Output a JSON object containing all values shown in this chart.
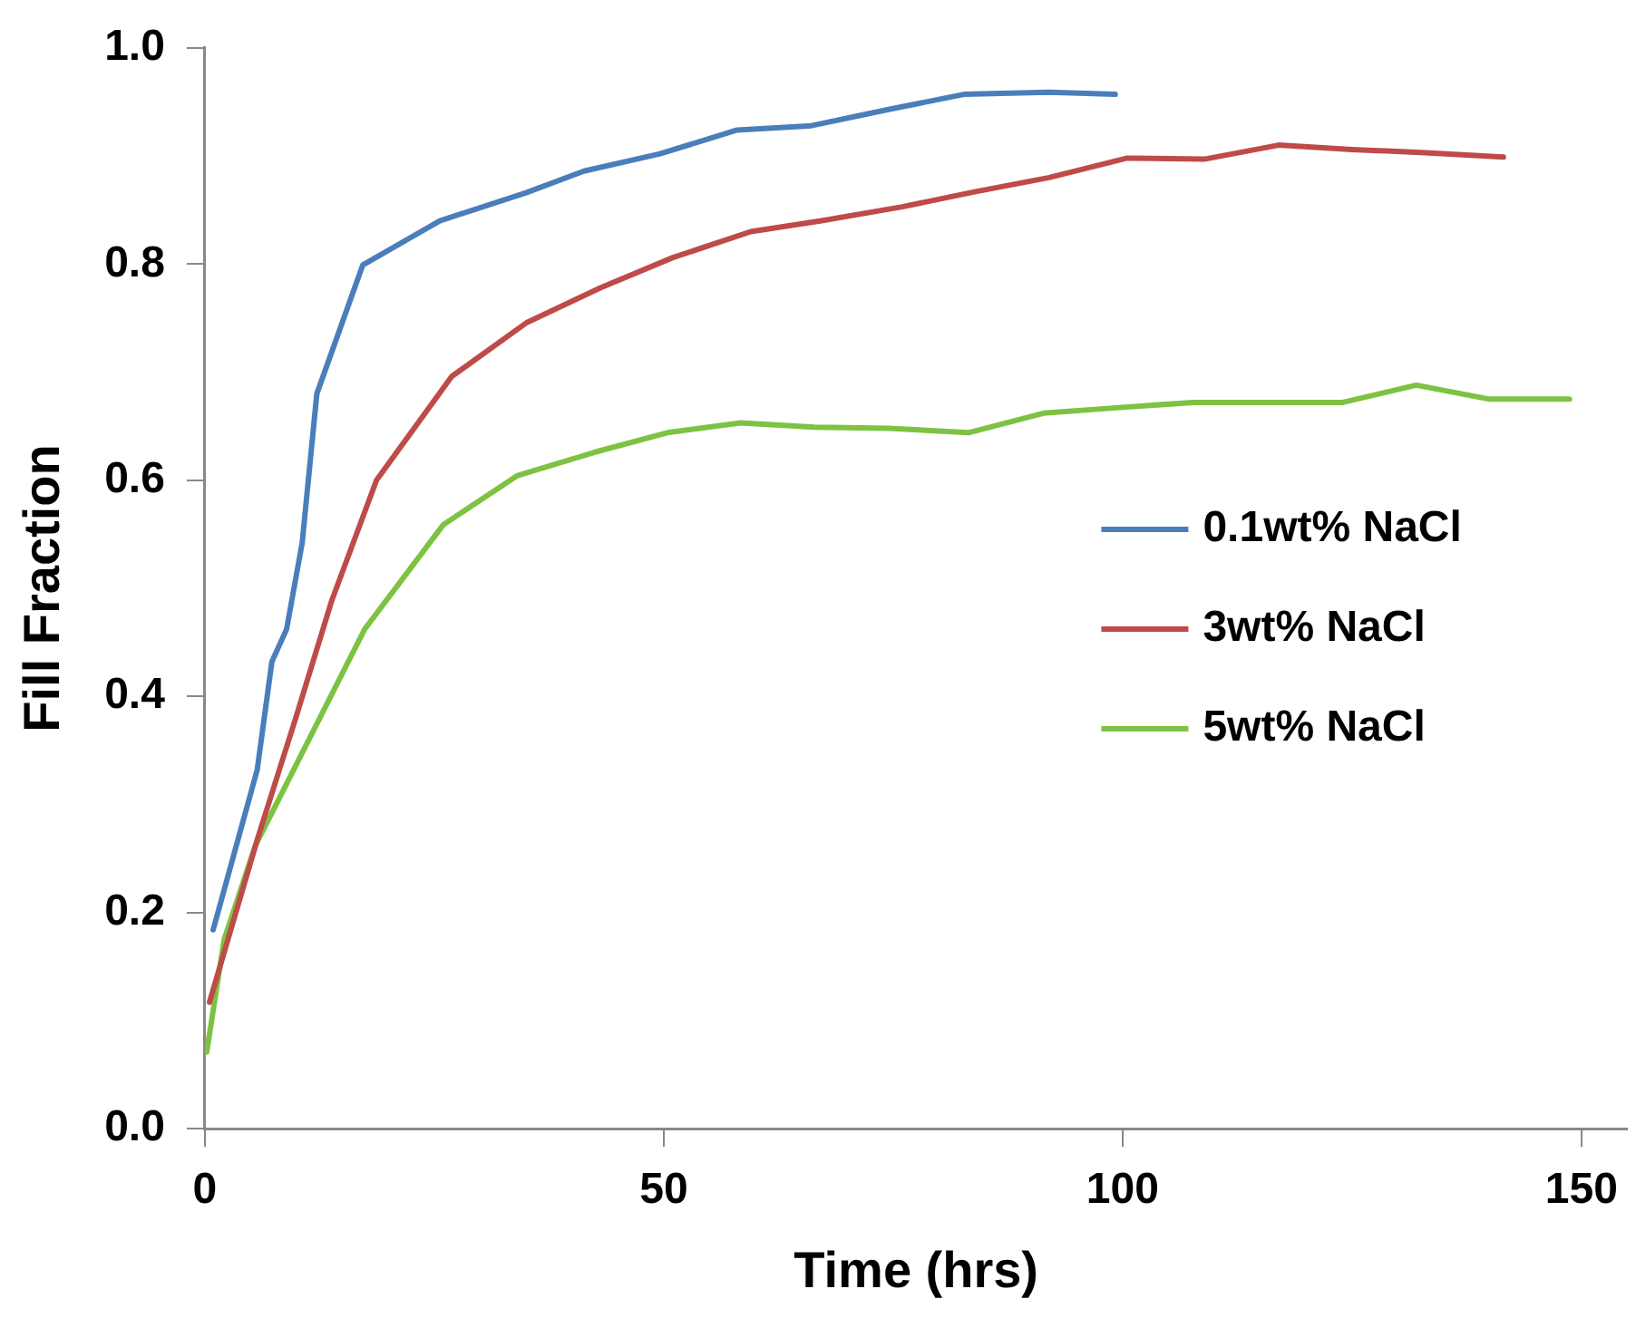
{
  "chart_data": {
    "type": "line",
    "xlabel": "Time (hrs)",
    "ylabel": "Fill Fraction",
    "xlim": [
      0,
      155
    ],
    "xticks": [
      0,
      50,
      100,
      150
    ],
    "ylim": [
      0,
      1
    ],
    "yticks": [
      {
        "value": 0,
        "label": "0.0"
      },
      {
        "value": 0.2,
        "label": "0.2"
      },
      {
        "value": 0.4,
        "label": "0.4"
      },
      {
        "value": 0.6,
        "label": "0.6"
      },
      {
        "value": 0.8,
        "label": "0.8"
      },
      {
        "value": 1,
        "label": "1.0"
      }
    ],
    "grid": false,
    "legend": "right",
    "marker": "none",
    "line_style": "solid",
    "series": [
      {
        "name": "0.1wt% NaCl",
        "color": "#4a7ebb",
        "x": [
          0.9,
          5.7,
          7.3,
          8.9,
          10.6,
          12.2,
          17.2,
          25.6,
          35,
          41.3,
          49.6,
          58,
          66.1,
          74.5,
          82.7,
          92,
          99.2
        ],
        "values": [
          0.184,
          0.332,
          0.432,
          0.462,
          0.542,
          0.68,
          0.799,
          0.84,
          0.866,
          0.886,
          0.902,
          0.924,
          0.928,
          0.943,
          0.957,
          0.959,
          0.957
        ]
      },
      {
        "name": "3wt% NaCl",
        "color": "#be4b48",
        "x": [
          0.5,
          5.8,
          9.9,
          13.8,
          18.7,
          26.9,
          35.1,
          43.1,
          51,
          59.5,
          67.2,
          76,
          84,
          92,
          100.5,
          108.9,
          117,
          125,
          133,
          141.5
        ],
        "values": [
          0.117,
          0.27,
          0.38,
          0.488,
          0.6,
          0.696,
          0.746,
          0.778,
          0.806,
          0.83,
          0.84,
          0.853,
          0.867,
          0.88,
          0.898,
          0.897,
          0.91,
          0.906,
          0.903,
          0.899
        ]
      },
      {
        "name": "5wt% NaCl",
        "color": "#7dc242",
        "x": [
          0.2,
          2.1,
          5.5,
          17.4,
          26,
          34,
          42.5,
          50.4,
          58.4,
          66.4,
          74.5,
          83.2,
          91.4,
          99.3,
          107.7,
          115.8,
          124,
          132,
          140,
          148.7
        ],
        "values": [
          0.071,
          0.175,
          0.262,
          0.462,
          0.559,
          0.604,
          0.626,
          0.644,
          0.653,
          0.649,
          0.648,
          0.644,
          0.662,
          0.667,
          0.672,
          0.672,
          0.672,
          0.688,
          0.675,
          0.675
        ]
      }
    ]
  }
}
